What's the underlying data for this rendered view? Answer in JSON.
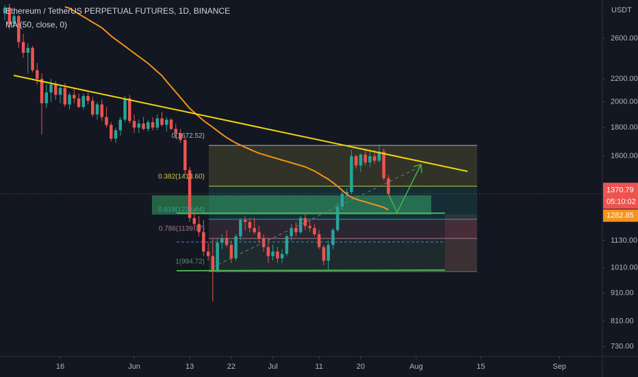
{
  "header": {
    "symbol_line": "Ethereum / TetherUS PERPETUAL FUTURES, 1D, BINANCE",
    "indicator": "MA (50, close, 0)"
  },
  "chart_data": {
    "type": "candlestick",
    "currency": "USDT",
    "log_scale": true,
    "up_color": "#26a69a",
    "down_color": "#ef5350",
    "candles": [
      [
        2880,
        2980,
        2800,
        2950
      ],
      [
        2950,
        3000,
        2700,
        2760
      ],
      [
        2760,
        2900,
        2720,
        2850
      ],
      [
        2850,
        2870,
        2500,
        2560
      ],
      [
        2560,
        2650,
        2400,
        2450
      ],
      [
        2450,
        2550,
        2250,
        2500
      ],
      [
        2500,
        2520,
        2260,
        2280
      ],
      [
        2280,
        2350,
        2150,
        2200
      ],
      [
        2200,
        2250,
        1750,
        1990
      ],
      [
        1990,
        2150,
        1950,
        2080
      ],
      [
        2080,
        2200,
        2000,
        2150
      ],
      [
        2150,
        2180,
        2020,
        2060
      ],
      [
        2060,
        2140,
        1990,
        2120
      ],
      [
        2120,
        2160,
        1960,
        1980
      ],
      [
        1980,
        2080,
        1940,
        2060
      ],
      [
        2060,
        2110,
        1990,
        2030
      ],
      [
        2030,
        2070,
        1950,
        1960
      ],
      [
        1960,
        2070,
        1940,
        2050
      ],
      [
        2050,
        2080,
        1980,
        2010
      ],
      [
        2010,
        2040,
        1880,
        1900
      ],
      [
        1900,
        2000,
        1860,
        1980
      ],
      [
        1980,
        2020,
        1850,
        1880
      ],
      [
        1880,
        1960,
        1800,
        1820
      ],
      [
        1820,
        1840,
        1700,
        1720
      ],
      [
        1720,
        1800,
        1690,
        1780
      ],
      [
        1780,
        1880,
        1740,
        1860
      ],
      [
        1860,
        2050,
        1840,
        2030
      ],
      [
        2030,
        2060,
        1830,
        1850
      ],
      [
        1850,
        1900,
        1760,
        1800
      ],
      [
        1800,
        1860,
        1760,
        1830
      ],
      [
        1830,
        1880,
        1780,
        1790
      ],
      [
        1790,
        1860,
        1770,
        1840
      ],
      [
        1840,
        1880,
        1780,
        1800
      ],
      [
        1800,
        1900,
        1780,
        1870
      ],
      [
        1870,
        1920,
        1810,
        1820
      ],
      [
        1820,
        1880,
        1770,
        1860
      ],
      [
        1860,
        1870,
        1780,
        1790
      ],
      [
        1790,
        1830,
        1720,
        1760
      ],
      [
        1760,
        1790,
        1690,
        1710
      ],
      [
        1710,
        1730,
        1480,
        1510
      ],
      [
        1510,
        1530,
        1220,
        1240
      ],
      [
        1240,
        1290,
        1180,
        1210
      ],
      [
        1210,
        1250,
        1150,
        1170
      ],
      [
        1170,
        1230,
        1060,
        1080
      ],
      [
        1080,
        1120,
        1040,
        1060
      ],
      [
        1060,
        1140,
        880,
        1000
      ],
      [
        1000,
        1140,
        990,
        1120
      ],
      [
        1120,
        1160,
        1090,
        1140
      ],
      [
        1140,
        1180,
        1100,
        1110
      ],
      [
        1110,
        1130,
        1030,
        1050
      ],
      [
        1050,
        1160,
        1040,
        1150
      ],
      [
        1150,
        1240,
        1130,
        1230
      ],
      [
        1230,
        1250,
        1180,
        1220
      ],
      [
        1220,
        1240,
        1170,
        1190
      ],
      [
        1190,
        1240,
        1160,
        1170
      ],
      [
        1170,
        1200,
        1120,
        1140
      ],
      [
        1140,
        1160,
        1080,
        1100
      ],
      [
        1100,
        1140,
        1030,
        1060
      ],
      [
        1060,
        1110,
        1040,
        1080
      ],
      [
        1080,
        1100,
        1030,
        1050
      ],
      [
        1050,
        1090,
        1030,
        1070
      ],
      [
        1070,
        1160,
        1060,
        1150
      ],
      [
        1150,
        1210,
        1130,
        1190
      ],
      [
        1190,
        1220,
        1150,
        1170
      ],
      [
        1170,
        1250,
        1160,
        1240
      ],
      [
        1240,
        1260,
        1180,
        1200
      ],
      [
        1200,
        1230,
        1170,
        1190
      ],
      [
        1190,
        1210,
        1150,
        1160
      ],
      [
        1160,
        1180,
        1090,
        1100
      ],
      [
        1100,
        1110,
        1020,
        1040
      ],
      [
        1040,
        1130,
        1000,
        1110
      ],
      [
        1110,
        1190,
        1090,
        1180
      ],
      [
        1180,
        1320,
        1170,
        1300
      ],
      [
        1300,
        1390,
        1280,
        1370
      ],
      [
        1370,
        1400,
        1350,
        1380
      ],
      [
        1380,
        1640,
        1370,
        1600
      ],
      [
        1600,
        1610,
        1520,
        1540
      ],
      [
        1540,
        1620,
        1500,
        1610
      ],
      [
        1610,
        1650,
        1540,
        1560
      ],
      [
        1560,
        1630,
        1530,
        1600
      ],
      [
        1600,
        1640,
        1550,
        1570
      ],
      [
        1570,
        1680,
        1560,
        1630
      ],
      [
        1630,
        1650,
        1450,
        1460
      ],
      [
        1460,
        1480,
        1360,
        1370.79
      ]
    ],
    "countdown": "05:10:02",
    "ma": {
      "color": "#f7931a",
      "values": [
        null,
        null,
        null,
        null,
        null,
        null,
        null,
        null,
        null,
        null,
        null,
        null,
        null,
        2960,
        2944,
        2910,
        2875,
        2843,
        2811,
        2778,
        2747,
        2716,
        2670,
        2625,
        2588,
        2552,
        2516,
        2481,
        2446,
        2412,
        2379,
        2345,
        2306,
        2267,
        2229,
        2178,
        2130,
        2083,
        2037,
        1992,
        1949,
        1916,
        1884,
        1852,
        1827,
        1802,
        1776,
        1751,
        1727,
        1708,
        1689,
        1675,
        1660,
        1646,
        1632,
        1619,
        1610,
        1601,
        1592,
        1583,
        1574,
        1566,
        1557,
        1548,
        1540,
        1531,
        1518,
        1505,
        1488,
        1471,
        1455,
        1434,
        1414,
        1390,
        1367,
        1351,
        1340,
        1332,
        1325,
        1317,
        1310,
        1303,
        1295,
        1282.85
      ]
    },
    "trendline_color": "#f5d50a",
    "fib_levels": [
      {
        "price": 1672.52,
        "label": "0(1672.52)",
        "color": "#b2b5be"
      },
      {
        "price": 1413.6,
        "label": "0.382(1413.60)",
        "color": "#d4c84a"
      },
      {
        "price": 1233.64,
        "label": "0.618(1233.64)",
        "color": "#26a69a"
      },
      {
        "price": 1139.77,
        "label": "0.786(1139.77)",
        "color": "#b07880"
      },
      {
        "price": 994.72,
        "label": "1(994.72)",
        "color": "#5f8f6a"
      }
    ],
    "ylim": [
      701,
      3045
    ],
    "yticks": [
      {
        "value": 2600,
        "label": "2600.00"
      },
      {
        "value": 2200,
        "label": "2200.00"
      },
      {
        "value": 2000,
        "label": "2000.00"
      },
      {
        "value": 1800,
        "label": "1800.00"
      },
      {
        "value": 1600,
        "label": "1600.00"
      },
      {
        "value": 1130,
        "label": "1130.00"
      },
      {
        "value": 1010,
        "label": "1010.00"
      },
      {
        "value": 910,
        "label": "910.00"
      },
      {
        "value": 810,
        "label": "810.00"
      },
      {
        "value": 730,
        "label": "730.00"
      }
    ],
    "xlim": [
      -1.04,
      129.3
    ],
    "xticks": [
      {
        "value": 12,
        "label": "16"
      },
      {
        "value": 28,
        "label": "Jun"
      },
      {
        "value": 40,
        "label": "13"
      },
      {
        "value": 49,
        "label": "22"
      },
      {
        "value": 58,
        "label": "Jul"
      },
      {
        "value": 68,
        "label": "11"
      },
      {
        "value": 77,
        "label": "20"
      },
      {
        "value": 89,
        "label": "Aug"
      },
      {
        "value": 103,
        "label": "15"
      },
      {
        "value": 120,
        "label": "Sep"
      }
    ]
  }
}
